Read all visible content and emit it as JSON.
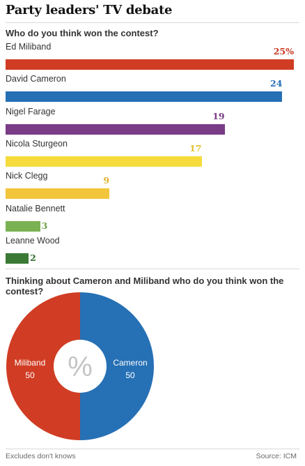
{
  "title": "Party leaders' TV debate",
  "footer": {
    "note": "Excludes don't knows",
    "source": "Source: ICM"
  },
  "chart_data": [
    {
      "type": "bar",
      "orientation": "horizontal",
      "title": "Who do you think won the contest?",
      "xlim": [
        0,
        25
      ],
      "categories": [
        "Ed Miliband",
        "David Cameron",
        "Nigel Farage",
        "Nicola Sturgeon",
        "Nick Clegg",
        "Natalie Bennett",
        "Leanne Wood"
      ],
      "values": [
        25,
        24,
        19,
        17,
        9,
        3,
        2
      ],
      "value_labels": [
        "25%",
        "24",
        "19",
        "17",
        "9",
        "3",
        "2"
      ],
      "colors": [
        "#d03d24",
        "#2670b5",
        "#7a3b87",
        "#f5dc3c",
        "#f2c53a",
        "#7ab253",
        "#3a7a35"
      ],
      "label_colors": [
        "#c7361f",
        "#2670b5",
        "#7a3b87",
        "#e3c130",
        "#e0b12c",
        "#6aa345",
        "#2f6d2b"
      ]
    },
    {
      "type": "pie",
      "title": "Thinking about Cameron and Miliband who do you think won the contest?",
      "center_label": "%",
      "slices": [
        {
          "label": "Miliband",
          "value": 50,
          "color": "#d03d24"
        },
        {
          "label": "Cameron",
          "value": 50,
          "color": "#2670b5"
        }
      ]
    }
  ]
}
